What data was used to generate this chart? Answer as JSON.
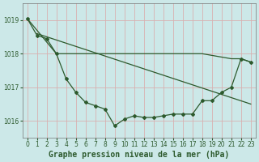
{
  "title": "Graphe pression niveau de la mer (hPa)",
  "background_color": "#cce8e8",
  "grid_color": "#d8b0b0",
  "line_color": "#2d5a2d",
  "marker": "D",
  "marker_size": 2.0,
  "line_width": 0.9,
  "xlim": [
    -0.5,
    23.5
  ],
  "ylim": [
    1015.5,
    1019.5
  ],
  "yticks": [
    1016,
    1017,
    1018,
    1019
  ],
  "xticks": [
    0,
    1,
    2,
    3,
    4,
    5,
    6,
    7,
    8,
    9,
    10,
    11,
    12,
    13,
    14,
    15,
    16,
    17,
    18,
    19,
    20,
    21,
    22,
    23
  ],
  "tick_fontsize": 5.5,
  "xlabel_fontsize": 7,
  "series1_x": [
    0,
    3,
    18,
    21,
    22,
    23
  ],
  "series1_y": [
    1019.05,
    1018.0,
    1018.0,
    1017.85,
    1017.85,
    1017.75
  ],
  "series2_x": [
    1,
    23
  ],
  "series2_y": [
    1018.6,
    1016.5
  ],
  "series3_x": [
    0,
    1,
    2,
    3,
    4,
    5,
    6,
    7,
    8,
    9,
    10,
    11,
    12,
    13,
    14,
    15,
    16,
    17,
    18,
    19,
    20,
    21,
    22,
    23
  ],
  "series3_y": [
    1019.05,
    1018.55,
    1018.45,
    1018.0,
    1017.25,
    1016.85,
    1016.55,
    1016.45,
    1016.35,
    1015.85,
    1016.05,
    1016.15,
    1016.1,
    1016.1,
    1016.15,
    1016.2,
    1016.2,
    1016.2,
    1016.6,
    1016.6,
    1016.85,
    1017.0,
    1017.85,
    1017.75
  ]
}
